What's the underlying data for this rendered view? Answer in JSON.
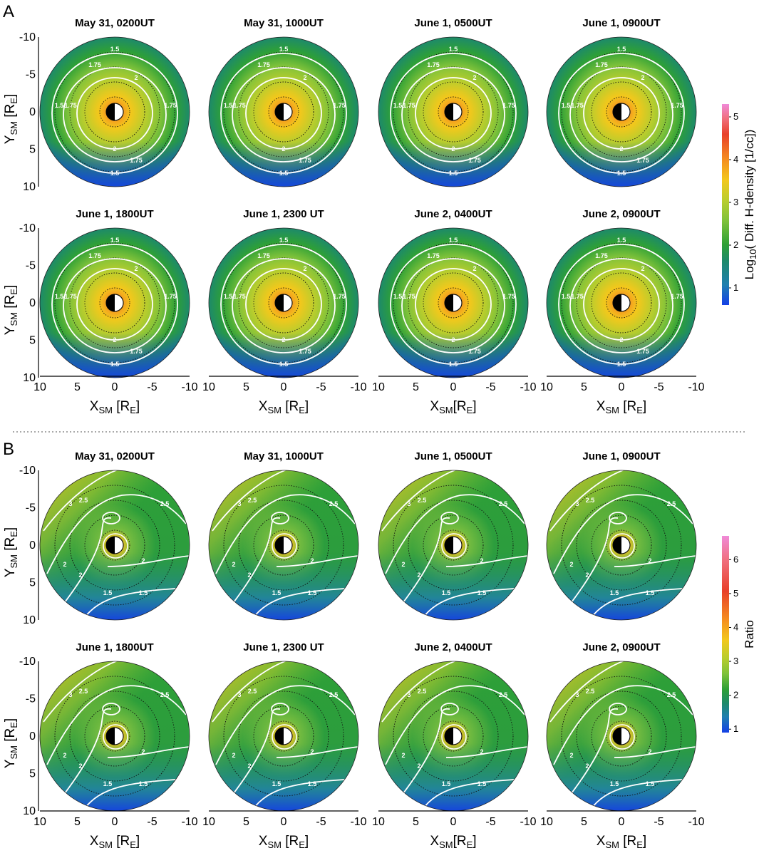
{
  "panels": [
    {
      "label": "A",
      "colorbar": {
        "title_main": "Log",
        "title_sub": "10",
        "title_rest": "( Diff. H-density [1/cc])",
        "ticks": [
          "1",
          "2",
          "3",
          "4",
          "5"
        ],
        "range": [
          0.6,
          5.3
        ]
      },
      "contour_labels": [
        "1.5",
        "1.75",
        "2"
      ],
      "rows": [
        [
          "May 31, 0200UT",
          "May 31, 1000UT",
          "June 1, 0500UT",
          "June 1, 0900UT"
        ],
        [
          "June 1, 1800UT",
          "June 1, 2300 UT",
          "June 2, 0400UT",
          "June 2, 0900UT"
        ]
      ]
    },
    {
      "label": "B",
      "colorbar": {
        "title_main": "Ratio",
        "title_sub": "",
        "title_rest": "",
        "ticks": [
          "1",
          "2",
          "3",
          "4",
          "5",
          "6"
        ],
        "range": [
          0.9,
          6.7
        ]
      },
      "contour_labels": [
        "1.5",
        "2",
        "2.5",
        "3"
      ],
      "rows": [
        [
          "May 31, 0200UT",
          "May 31, 1000UT",
          "June 1, 0500UT",
          "June 1, 0900UT"
        ],
        [
          "June 1, 1800UT",
          "June 1, 2300 UT",
          "June 2, 0400UT",
          "June 2, 0900UT"
        ]
      ]
    }
  ],
  "axes": {
    "y_label_main": "Y",
    "y_label_sub": "SM",
    "y_label_unit": "[R",
    "y_label_unit_sub": "E",
    "y_label_close": "]",
    "y_ticks": [
      "-10",
      "-5",
      "0",
      "5",
      "10"
    ],
    "x_label_main": "X",
    "x_label_sub": "SM",
    "x_label_unit": " [R",
    "x_label_unit_nospace": "[R",
    "x_label_unit_sub": "E",
    "x_label_close": "]",
    "x_ticks": [
      "10",
      "5",
      "0",
      "-5",
      "-10"
    ],
    "range": [
      10,
      -10
    ]
  },
  "chart_data": [
    {
      "type": "heatmap",
      "title": "Log10( Diff. H-density [1/cc])",
      "panel": "A",
      "subplots": [
        "May 31, 0200UT",
        "May 31, 1000UT",
        "June 1, 0500UT",
        "June 1, 0900UT",
        "June 1, 1800UT",
        "June 1, 2300 UT",
        "June 2, 0400UT",
        "June 2, 0900UT"
      ],
      "xlabel": "XSM [RE]",
      "ylabel": "YSM [RE]",
      "xlim": [
        10,
        -10
      ],
      "ylim": [
        -10,
        10
      ],
      "contour_levels": [
        1.5,
        1.75,
        2
      ],
      "colorbar_range": [
        0.6,
        5.3
      ]
    },
    {
      "type": "heatmap",
      "title": "Ratio",
      "panel": "B",
      "subplots": [
        "May 31, 0200UT",
        "May 31, 1000UT",
        "June 1, 0500UT",
        "June 1, 0900UT",
        "June 1, 1800UT",
        "June 1, 2300 UT",
        "June 2, 0400UT",
        "June 2, 0900UT"
      ],
      "xlabel": "XSM [RE]",
      "ylabel": "YSM [RE]",
      "xlim": [
        10,
        -10
      ],
      "ylim": [
        -10,
        10
      ],
      "contour_levels": [
        1.5,
        2,
        2.5,
        3
      ],
      "colorbar_range": [
        0.9,
        6.7
      ]
    }
  ],
  "colors": {
    "blue": "#1440e6",
    "teal": "#1d8a6a",
    "green": "#2ea036",
    "lightgreen": "#7fc23a",
    "yellowgreen": "#b9cd2d",
    "yellow": "#f2c81c",
    "orange": "#f59020",
    "red": "#e8402a",
    "pink": "#f08ad8"
  }
}
